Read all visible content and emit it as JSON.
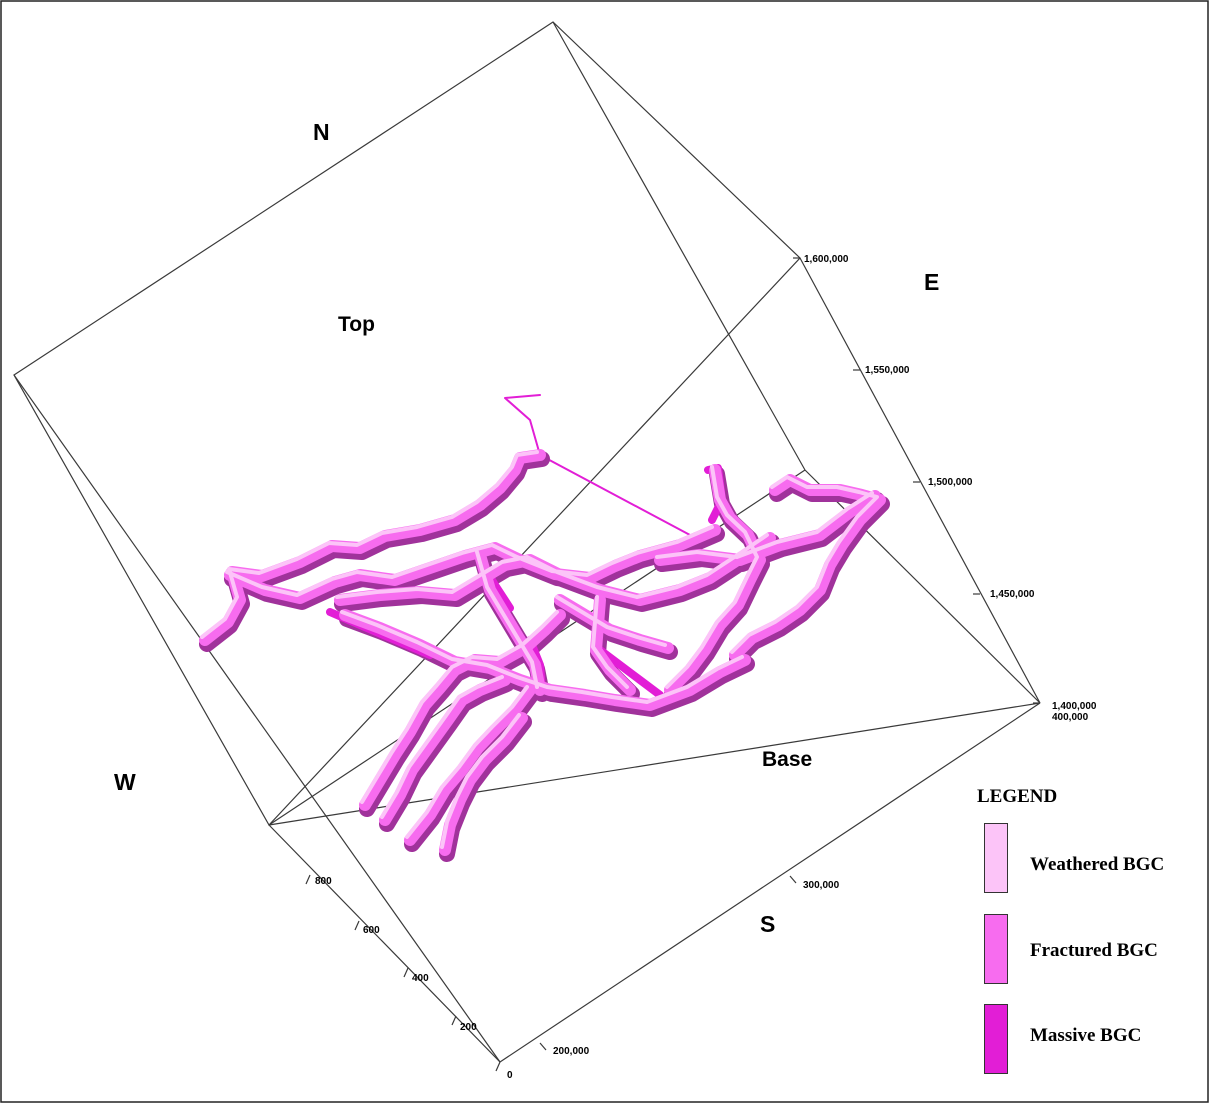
{
  "directions": {
    "north": "N",
    "east": "E",
    "south": "S",
    "west": "W"
  },
  "faces": {
    "top": "Top",
    "base": "Base"
  },
  "axis_ticks": {
    "northing": [
      "1,600,000",
      "1,550,000",
      "1,500,000",
      "1,450,000",
      "1,400,000"
    ],
    "easting": [
      "400,000",
      "300,000",
      "200,000"
    ],
    "depth": [
      "800",
      "600",
      "400",
      "200",
      "0"
    ]
  },
  "legend": {
    "title": "LEGEND",
    "items": [
      {
        "label": "Weathered BGC",
        "color": "#fcc4f8"
      },
      {
        "label": "Fractured BGC",
        "color": "#f76cef"
      },
      {
        "label": "Massive BGC",
        "color": "#e21ed6"
      }
    ]
  },
  "colors": {
    "weathered": "#fcc4f8",
    "fractured": "#f76cef",
    "massive": "#e21ed6",
    "massive_shadow": "#a0329b",
    "frame": "#3a3a3a"
  }
}
